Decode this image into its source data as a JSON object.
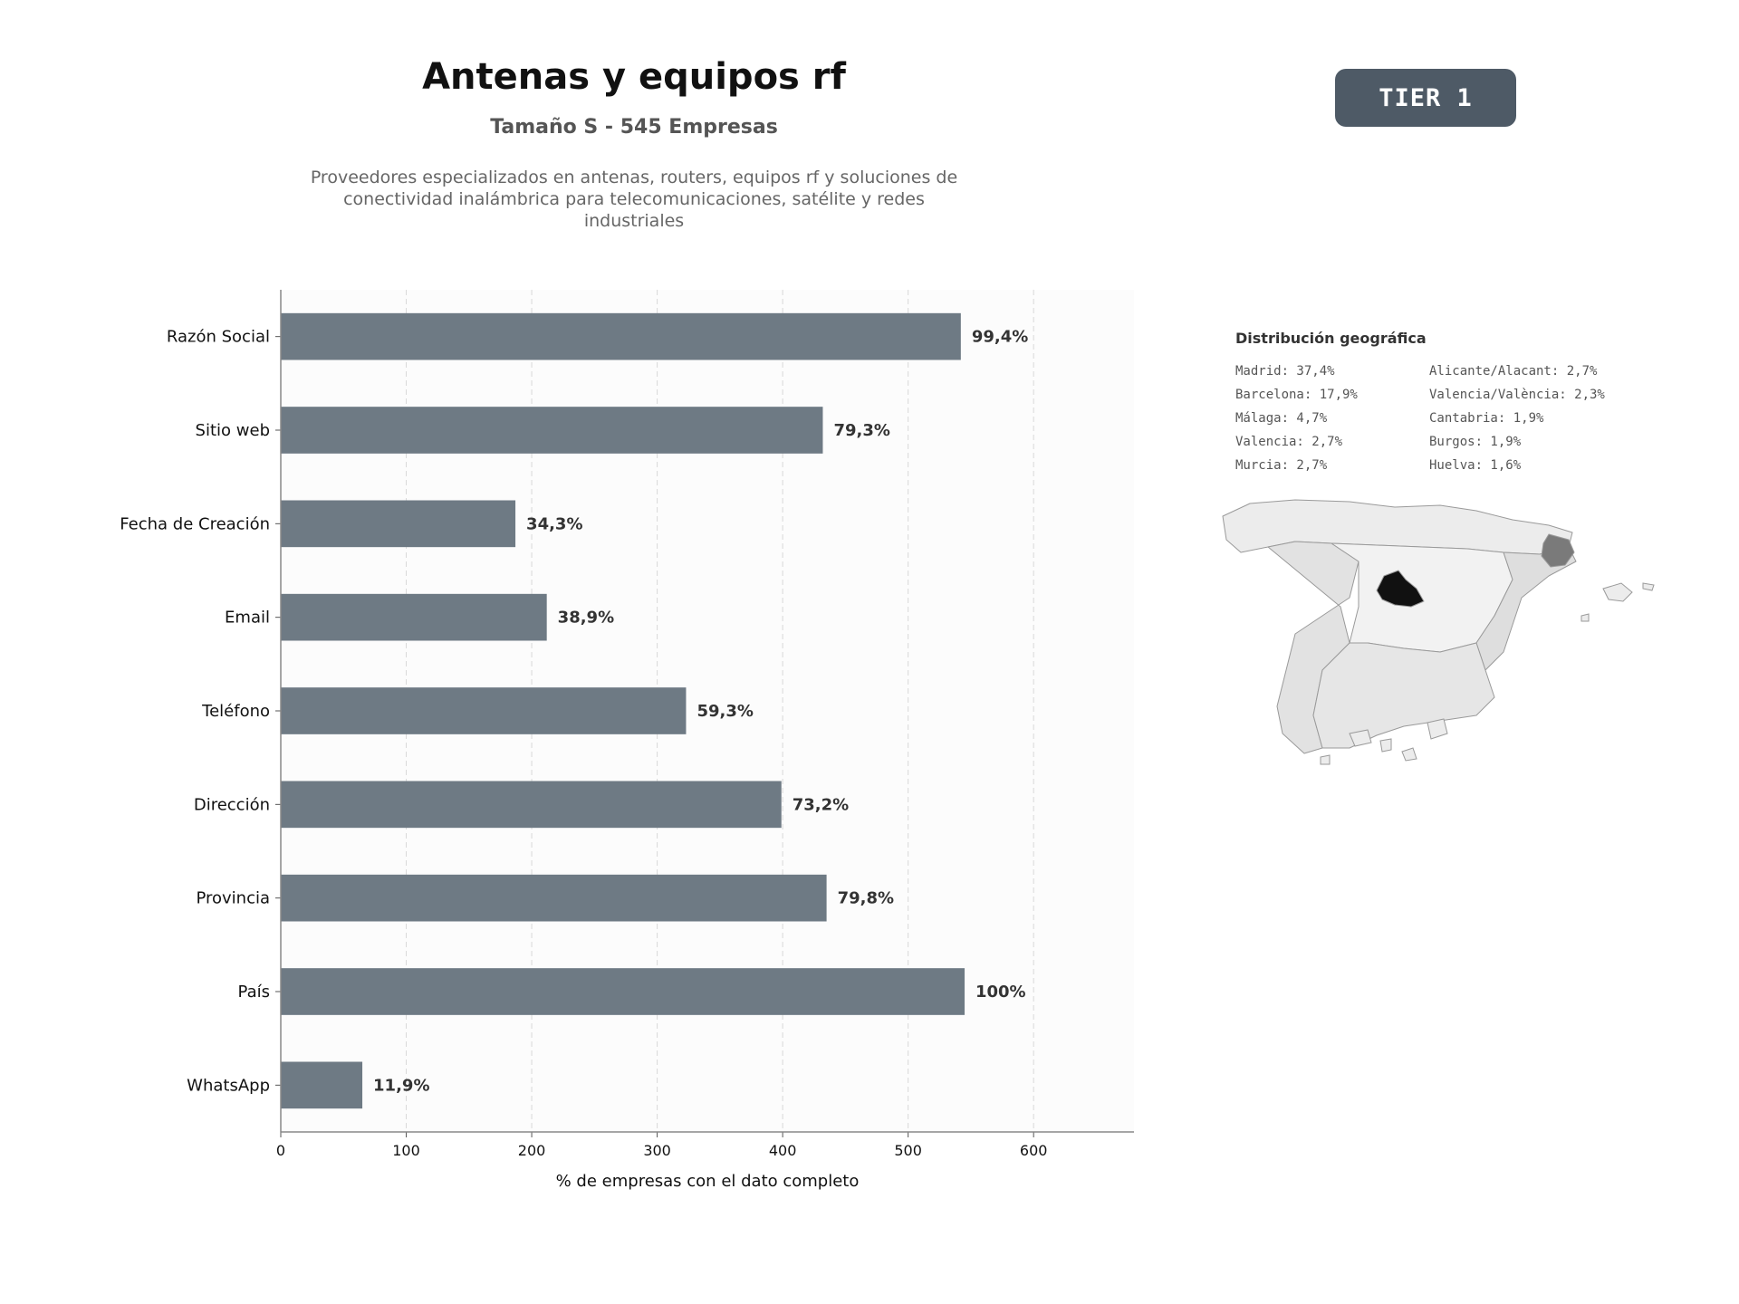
{
  "header": {
    "title": "Antenas y equipos rf",
    "subtitle": "Tamaño S - 545 Empresas",
    "description": "Proveedores especializados en antenas, routers, equipos rf y soluciones de conectividad inalámbrica para telecomunicaciones, satélite y redes industriales"
  },
  "badge": {
    "label": "TIER 1"
  },
  "chart_data": {
    "type": "bar",
    "orientation": "horizontal",
    "categories": [
      "Razón Social",
      "Sitio web",
      "Fecha de Creación",
      "Email",
      "Teléfono",
      "Dirección",
      "Provincia",
      "País",
      "WhatsApp"
    ],
    "values": [
      542,
      432,
      187,
      212,
      323,
      399,
      435,
      545,
      65
    ],
    "data_labels": [
      "99,4%",
      "79,3%",
      "34,3%",
      "38,9%",
      "59,3%",
      "73,2%",
      "79,8%",
      "100%",
      "11,9%"
    ],
    "xlabel": "% de empresas con el dato completo",
    "ylabel": "",
    "xlim": [
      0,
      680
    ],
    "xticks": [
      0,
      100,
      200,
      300,
      400,
      500,
      600
    ],
    "grid": "vertical dashed",
    "colors": {
      "bar": "#6e7a84",
      "plot_bg": "#fcfcfc",
      "label": "#333333"
    }
  },
  "geo": {
    "title": "Distribución geográfica",
    "items": [
      "Madrid: 37,4%",
      "Alicante/Alacant: 2,7%",
      "Barcelona: 17,9%",
      "Valencia/València: 2,3%",
      "Málaga: 4,7%",
      "Cantabria: 1,9%",
      "Valencia: 2,7%",
      "Burgos: 1,9%",
      "Murcia: 2,7%",
      "Huelva: 1,6%"
    ],
    "colors": {
      "madrid": "#111111",
      "barcelona": "#7a7a7a",
      "regions": "#e4e4e4",
      "border": "#9a9a9a"
    }
  }
}
